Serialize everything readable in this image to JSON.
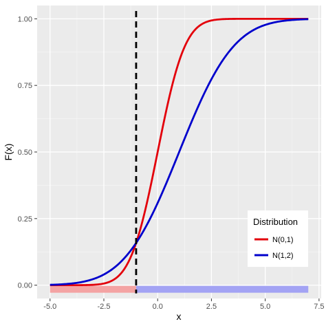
{
  "chart_data": {
    "type": "line",
    "title": "",
    "xlabel": "x",
    "ylabel": "F(x)",
    "xlim": [
      -5.6,
      7.6
    ],
    "ylim": [
      -0.05,
      1.05
    ],
    "x_ticks": [
      -5,
      -2.5,
      0,
      2.5,
      5,
      7.5
    ],
    "x_tick_labels": [
      "-5.0",
      "-2.5",
      "0.0",
      "2.5",
      "5.0",
      "7.5"
    ],
    "y_ticks": [
      0,
      0.25,
      0.5,
      0.75,
      1
    ],
    "y_tick_labels": [
      "0.00",
      "0.25",
      "0.50",
      "0.75",
      "1.00"
    ],
    "grid": true,
    "panel_background": "#ebebeb",
    "series": [
      {
        "name": "N(0,1)",
        "color": "#e3000b",
        "distribution": {
          "family": "normal",
          "mean": 0,
          "sd": 1
        },
        "x_range": [
          -5,
          7
        ]
      },
      {
        "name": "N(1,2)",
        "color": "#0000cc",
        "distribution": {
          "family": "normal",
          "mean": 1,
          "sd": 2
        },
        "x_range": [
          -5,
          7
        ]
      }
    ],
    "vline": {
      "x": -1,
      "color": "#000000",
      "style": "dashed"
    },
    "bands": [
      {
        "x_from": -5,
        "x_to": -1,
        "color": "#f4a3a3"
      },
      {
        "x_from": -1,
        "x_to": 7,
        "color": "#a3a3f4"
      }
    ],
    "legend": {
      "title": "Distribution",
      "position": "bottom-right",
      "entries": [
        "N(0,1)",
        "N(1,2)"
      ]
    }
  }
}
